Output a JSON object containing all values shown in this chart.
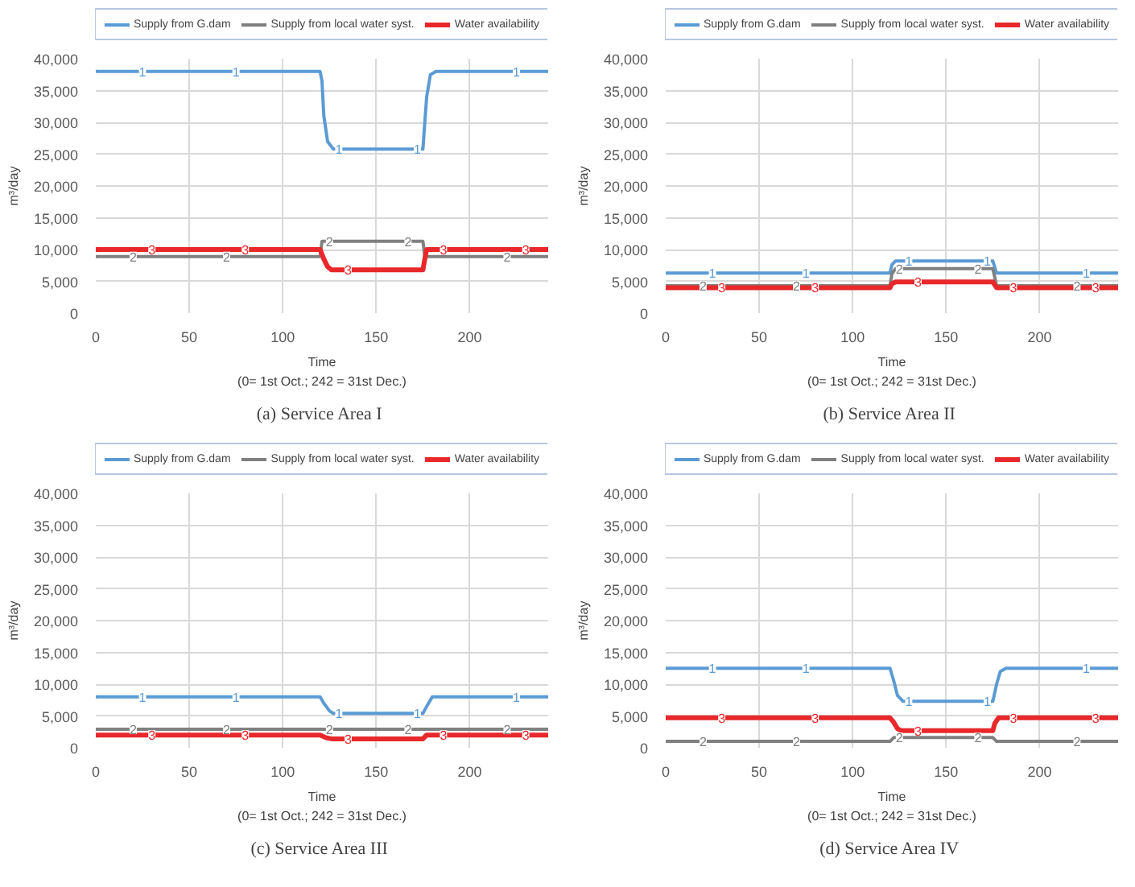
{
  "chart_data": [
    {
      "type": "line",
      "title": "(a)  Service Area I",
      "xlabel": "Time",
      "ylabel": "m³/day",
      "xlim": [
        0,
        242
      ],
      "xticks": [
        0,
        50,
        100,
        150,
        200
      ],
      "ylim": [
        0,
        40000
      ],
      "yticks": [
        {
          "value": 0,
          "label": "0"
        },
        {
          "value": 5000,
          "label": "5,000"
        },
        {
          "value": 10000,
          "label": "10,000"
        },
        {
          "value": 15000,
          "label": "15,000"
        },
        {
          "value": 20000,
          "label": "20,000"
        },
        {
          "value": 25000,
          "label": "25,000"
        },
        {
          "value": 30000,
          "label": "30,000"
        },
        {
          "value": 35000,
          "label": "35,000"
        },
        {
          "value": 40000,
          "label": "40,000"
        }
      ],
      "grid": true,
      "legend": "top",
      "line_style": "solid",
      "marker": "none",
      "series": [
        {
          "name": "Supply from G.dam",
          "color": "#5b9bd5",
          "x": [
            0,
            120,
            121,
            122,
            124,
            127,
            175,
            176,
            177,
            179,
            182,
            242
          ],
          "values": [
            38000,
            38000,
            36500,
            31000,
            27000,
            25800,
            25800,
            30000,
            34000,
            37500,
            38000,
            38000
          ]
        },
        {
          "name": "Supply from local water syst.",
          "color": "#808080",
          "x": [
            0,
            120,
            121,
            175,
            176,
            242
          ],
          "values": [
            8900,
            8900,
            11300,
            11300,
            8900,
            8900
          ]
        },
        {
          "name": "Water availability",
          "color": "#e8282b",
          "x": [
            0,
            120,
            122,
            124,
            126,
            175,
            176,
            177,
            242
          ],
          "values": [
            10000,
            10000,
            8500,
            7300,
            6800,
            6800,
            8500,
            10000,
            10000
          ]
        }
      ],
      "annotations": [
        "(0= 1st Oct.; 242 = 31st Dec.)",
        {
          "text": "1",
          "x": 25,
          "y": 38000
        },
        {
          "text": "1",
          "x": 75,
          "y": 38000
        },
        {
          "text": "1",
          "x": 130,
          "y": 25800
        },
        {
          "text": "1",
          "x": 172,
          "y": 25800
        },
        {
          "text": "1",
          "x": 225,
          "y": 38000
        },
        {
          "text": "2",
          "x": 20,
          "y": 8900
        },
        {
          "text": "2",
          "x": 70,
          "y": 8900
        },
        {
          "text": "2",
          "x": 125,
          "y": 11300
        },
        {
          "text": "2",
          "x": 167,
          "y": 11300
        },
        {
          "text": "2",
          "x": 220,
          "y": 8900
        },
        {
          "text": "3",
          "x": 30,
          "y": 10000
        },
        {
          "text": "3",
          "x": 80,
          "y": 10000
        },
        {
          "text": "3",
          "x": 135,
          "y": 6800
        },
        {
          "text": "3",
          "x": 186,
          "y": 10000
        },
        {
          "text": "3",
          "x": 230,
          "y": 10000
        }
      ]
    },
    {
      "type": "line",
      "title": "(b)  Service Area II",
      "xlabel": "Time",
      "ylabel": "m³/day",
      "xlim": [
        0,
        242
      ],
      "xticks": [
        0,
        50,
        100,
        150,
        200
      ],
      "ylim": [
        0,
        40000
      ],
      "yticks": [
        {
          "value": 0,
          "label": "0"
        },
        {
          "value": 5000,
          "label": "5,000"
        },
        {
          "value": 10000,
          "label": "10,000"
        },
        {
          "value": 15000,
          "label": "15,000"
        },
        {
          "value": 20000,
          "label": "20,000"
        },
        {
          "value": 25000,
          "label": "25,000"
        },
        {
          "value": 30000,
          "label": "30,000"
        },
        {
          "value": 35000,
          "label": "35,000"
        },
        {
          "value": 40000,
          "label": "40,000"
        }
      ],
      "grid": true,
      "legend": "top",
      "line_style": "solid",
      "marker": "none",
      "series": [
        {
          "name": "Supply from G.dam",
          "color": "#5b9bd5",
          "x": [
            0,
            120,
            121,
            123,
            175,
            177,
            242
          ],
          "values": [
            6300,
            6300,
            7600,
            8200,
            8200,
            6300,
            6300
          ]
        },
        {
          "name": "Supply from local water syst.",
          "color": "#808080",
          "x": [
            0,
            120,
            121,
            123,
            175,
            177,
            242
          ],
          "values": [
            4300,
            4300,
            6200,
            7000,
            7000,
            4300,
            4300
          ]
        },
        {
          "name": "Water availability",
          "color": "#e8282b",
          "x": [
            0,
            120,
            121,
            123,
            175,
            177,
            242
          ],
          "values": [
            4000,
            4000,
            4600,
            4900,
            4900,
            4000,
            4000
          ]
        }
      ],
      "annotations": [
        "(0= 1st Oct.; 242 = 31st Dec.)",
        {
          "text": "1",
          "x": 25,
          "y": 6300
        },
        {
          "text": "1",
          "x": 75,
          "y": 6300
        },
        {
          "text": "1",
          "x": 130,
          "y": 8200
        },
        {
          "text": "1",
          "x": 172,
          "y": 8200
        },
        {
          "text": "1",
          "x": 225,
          "y": 6300
        },
        {
          "text": "2",
          "x": 20,
          "y": 4300
        },
        {
          "text": "2",
          "x": 70,
          "y": 4300
        },
        {
          "text": "2",
          "x": 125,
          "y": 7000
        },
        {
          "text": "2",
          "x": 167,
          "y": 7000
        },
        {
          "text": "2",
          "x": 220,
          "y": 4300
        },
        {
          "text": "3",
          "x": 30,
          "y": 4000
        },
        {
          "text": "3",
          "x": 80,
          "y": 4000
        },
        {
          "text": "3",
          "x": 135,
          "y": 4900
        },
        {
          "text": "3",
          "x": 186,
          "y": 4000
        },
        {
          "text": "3",
          "x": 230,
          "y": 4000
        }
      ]
    },
    {
      "type": "line",
      "title": "(c)  Service Area III",
      "xlabel": "Time",
      "ylabel": "m³/day",
      "xlim": [
        0,
        242
      ],
      "xticks": [
        0,
        50,
        100,
        150,
        200
      ],
      "ylim": [
        0,
        40000
      ],
      "yticks": [
        {
          "value": 0,
          "label": "0"
        },
        {
          "value": 5000,
          "label": "5,000"
        },
        {
          "value": 10000,
          "label": "10,000"
        },
        {
          "value": 15000,
          "label": "15,000"
        },
        {
          "value": 20000,
          "label": "20,000"
        },
        {
          "value": 25000,
          "label": "25,000"
        },
        {
          "value": 30000,
          "label": "30,000"
        },
        {
          "value": 35000,
          "label": "35,000"
        },
        {
          "value": 40000,
          "label": "40,000"
        }
      ],
      "grid": true,
      "legend": "top",
      "line_style": "solid",
      "marker": "none",
      "series": [
        {
          "name": "Supply from G.dam",
          "color": "#5b9bd5",
          "x": [
            0,
            120,
            122,
            125,
            127,
            175,
            177,
            180,
            242
          ],
          "values": [
            8000,
            8000,
            7000,
            5800,
            5400,
            5400,
            6500,
            8000,
            8000
          ]
        },
        {
          "name": "Supply from local water syst.",
          "color": "#808080",
          "x": [
            0,
            242
          ],
          "values": [
            2900,
            2900
          ]
        },
        {
          "name": "Water availability",
          "color": "#e8282b",
          "x": [
            0,
            120,
            123,
            126,
            175,
            177,
            242
          ],
          "values": [
            2000,
            2000,
            1600,
            1400,
            1400,
            2000,
            2000
          ]
        }
      ],
      "annotations": [
        "(0= 1st Oct.; 242 = 31st Dec.)",
        {
          "text": "1",
          "x": 25,
          "y": 8000
        },
        {
          "text": "1",
          "x": 75,
          "y": 8000
        },
        {
          "text": "1",
          "x": 130,
          "y": 5400
        },
        {
          "text": "1",
          "x": 172,
          "y": 5400
        },
        {
          "text": "1",
          "x": 225,
          "y": 8000
        },
        {
          "text": "2",
          "x": 20,
          "y": 2900
        },
        {
          "text": "2",
          "x": 70,
          "y": 2900
        },
        {
          "text": "2",
          "x": 125,
          "y": 2900
        },
        {
          "text": "2",
          "x": 167,
          "y": 2900
        },
        {
          "text": "2",
          "x": 220,
          "y": 2900
        },
        {
          "text": "3",
          "x": 30,
          "y": 2000
        },
        {
          "text": "3",
          "x": 80,
          "y": 2000
        },
        {
          "text": "3",
          "x": 135,
          "y": 1400
        },
        {
          "text": "3",
          "x": 186,
          "y": 2000
        },
        {
          "text": "3",
          "x": 230,
          "y": 2000
        }
      ]
    },
    {
      "type": "line",
      "title": "(d)  Service Area IV",
      "xlabel": "Time",
      "ylabel": "m³/day",
      "xlim": [
        0,
        242
      ],
      "xticks": [
        0,
        50,
        100,
        150,
        200
      ],
      "ylim": [
        0,
        40000
      ],
      "yticks": [
        {
          "value": 0,
          "label": "0"
        },
        {
          "value": 5000,
          "label": "5,000"
        },
        {
          "value": 10000,
          "label": "10,000"
        },
        {
          "value": 15000,
          "label": "15,000"
        },
        {
          "value": 20000,
          "label": "20,000"
        },
        {
          "value": 25000,
          "label": "25,000"
        },
        {
          "value": 30000,
          "label": "30,000"
        },
        {
          "value": 35000,
          "label": "35,000"
        },
        {
          "value": 40000,
          "label": "40,000"
        }
      ],
      "grid": true,
      "legend": "top",
      "line_style": "solid",
      "marker": "none",
      "series": [
        {
          "name": "Supply from G.dam",
          "color": "#5b9bd5",
          "x": [
            0,
            120,
            122,
            124,
            127,
            175,
            177,
            179,
            182,
            242
          ],
          "values": [
            12500,
            12500,
            10500,
            8200,
            7300,
            7300,
            10000,
            12000,
            12500,
            12500
          ]
        },
        {
          "name": "Supply from local water syst.",
          "color": "#808080",
          "x": [
            0,
            120,
            122,
            175,
            177,
            242
          ],
          "values": [
            1000,
            1000,
            1600,
            1600,
            1000,
            1000
          ]
        },
        {
          "name": "Water availability",
          "color": "#e8282b",
          "x": [
            0,
            120,
            122,
            124,
            126,
            175,
            176,
            178,
            242
          ],
          "values": [
            4700,
            4700,
            4000,
            3000,
            2700,
            2700,
            3800,
            4700,
            4700
          ]
        }
      ],
      "annotations": [
        "(0= 1st Oct.; 242 = 31st Dec.)",
        {
          "text": "1",
          "x": 25,
          "y": 12500
        },
        {
          "text": "1",
          "x": 75,
          "y": 12500
        },
        {
          "text": "1",
          "x": 130,
          "y": 7300
        },
        {
          "text": "1",
          "x": 172,
          "y": 7300
        },
        {
          "text": "1",
          "x": 225,
          "y": 12500
        },
        {
          "text": "2",
          "x": 20,
          "y": 1000
        },
        {
          "text": "2",
          "x": 70,
          "y": 1000
        },
        {
          "text": "2",
          "x": 125,
          "y": 1600
        },
        {
          "text": "2",
          "x": 167,
          "y": 1600
        },
        {
          "text": "2",
          "x": 220,
          "y": 1000
        },
        {
          "text": "3",
          "x": 30,
          "y": 4700
        },
        {
          "text": "3",
          "x": 80,
          "y": 4700
        },
        {
          "text": "3",
          "x": 135,
          "y": 2700
        },
        {
          "text": "3",
          "x": 186,
          "y": 4700
        },
        {
          "text": "3",
          "x": 230,
          "y": 4700
        }
      ]
    }
  ]
}
